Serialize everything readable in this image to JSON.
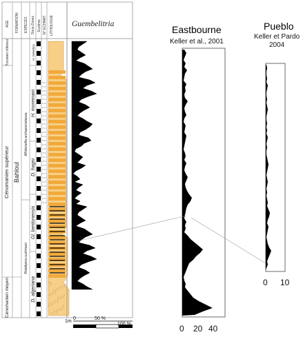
{
  "stratigraphic_column": {
    "headers": [
      "AGE",
      "FORMATION",
      "ESPECES",
      "Sous-Zones",
      "Eustime",
      "N° ECHANT",
      "LITHOLOGIE"
    ],
    "age_upper_1": "Turonien inférieur",
    "age_upper_2": "Cénomanien supérieur",
    "age_lower": "Cénomanien moyen",
    "formation": "Bahloul",
    "species_zone_1": "Whiteinella archaeocretacea",
    "species_zone_2": "Rotalipora cushmani",
    "subzones": [
      "H. helvetica",
      "H. moremani",
      "D. hagni",
      "Gl. bentonensis",
      "D. algeriana"
    ],
    "title": "Guembelitria",
    "scale_label": "1m",
    "axis_ticks": [
      "0",
      "50 %",
      "100 %"
    ]
  },
  "eastbourne": {
    "name": "Eastbourne",
    "reference": "Keller et al., 2001",
    "axis_ticks": [
      "0",
      "20",
      "40"
    ]
  },
  "pueblo": {
    "name": "Pueblo",
    "reference": "Keller et Pardo",
    "year": "2004",
    "axis_ticks": [
      "0",
      "10"
    ]
  },
  "colors": {
    "lithology_fill": "#f2a93b",
    "lithology_light": "#f7cf86",
    "abundance_fill": "#000000",
    "frame": "#666666"
  }
}
